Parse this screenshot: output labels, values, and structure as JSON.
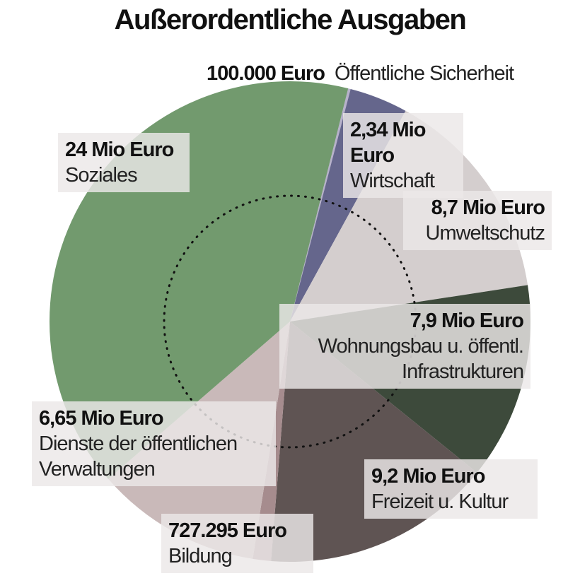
{
  "chart_data": {
    "type": "pie",
    "title": "Außerordentliche Ausgaben",
    "categories": [
      "Öffentliche Sicherheit",
      "Wirtschaft",
      "Umweltschutz",
      "Wohnungsbau u. öffentl. Infrastrukturen",
      "Freizeit u. Kultur",
      "Bildung",
      "Dienste der öffentlichen Verwaltungen",
      "Soziales"
    ],
    "values": [
      100000,
      2340000,
      8700000,
      7900000,
      9200000,
      727295,
      6650000,
      24000000
    ],
    "value_labels": [
      "100.000 Euro",
      "2,34 Mio Euro",
      "8,7 Mio Euro",
      "7,9 Mio Euro",
      "9,2 Mio Euro",
      "727.295 Euro",
      "6,65 Mio Euro",
      "24 Mio Euro"
    ],
    "colors": [
      "#b7b1cb",
      "#65668c",
      "#d4cece",
      "#3d4a3b",
      "#5f5453",
      "#a68c8e",
      "#c9b9b9",
      "#729a6e"
    ]
  }
}
